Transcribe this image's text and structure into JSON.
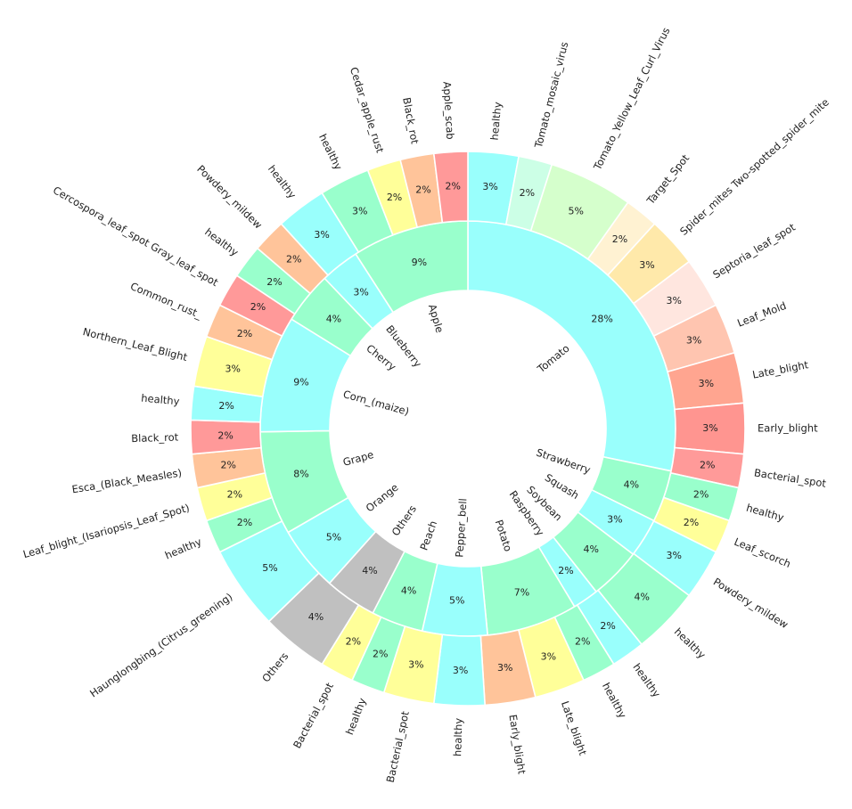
{
  "chart_data": {
    "type": "pie",
    "subtype": "nested-donut",
    "title": "",
    "start_angle_deg": 90,
    "direction": "clockwise",
    "colors": {
      "healthy": "#99fffc",
      "rank1": "#99ffcc",
      "rank2": "#ffff99",
      "rank3": "#ffc49a",
      "rank4": "#ff9999",
      "others": "#c0c0c0"
    },
    "inner_ring": [
      {
        "label": "Tomato",
        "value": 28
      },
      {
        "label": "Strawberry",
        "value": 4
      },
      {
        "label": "Squash",
        "value": 3
      },
      {
        "label": "Soybean",
        "value": 4
      },
      {
        "label": "Raspberry",
        "value": 2
      },
      {
        "label": "Potato",
        "value": 7
      },
      {
        "label": "Pepper_bell",
        "value": 5
      },
      {
        "label": "Peach",
        "value": 4
      },
      {
        "label": "Others",
        "value": 4
      },
      {
        "label": "Orange",
        "value": 5
      },
      {
        "label": "Grape",
        "value": 8
      },
      {
        "label": "Corn_(maize)",
        "value": 9
      },
      {
        "label": "Cherry",
        "value": 4
      },
      {
        "label": "Blueberry",
        "value": 3
      },
      {
        "label": "Apple",
        "value": 9
      }
    ],
    "outer_ring": [
      {
        "label": "healthy",
        "value": 3,
        "color": "#99fffc"
      },
      {
        "label": "Tomato_mosaic_virus",
        "value": 2,
        "color": "#ccffe6"
      },
      {
        "label": "Tomato_Yellow_Leaf_Curl_Virus",
        "value": 5,
        "color": "#d5ffcc"
      },
      {
        "label": "Target_Spot",
        "value": 2,
        "color": "#fff2d2"
      },
      {
        "label": "Spider_mites Two-spotted_spider_mite",
        "value": 3,
        "color": "#ffe9aa"
      },
      {
        "label": "Septoria_leaf_spot",
        "value": 3,
        "color": "#ffe6df"
      },
      {
        "label": "Leaf_Mold",
        "value": 3,
        "color": "#ffc5b0"
      },
      {
        "label": "Late_blight",
        "value": 3,
        "color": "#ffa590"
      },
      {
        "label": "Early_blight",
        "value": 3,
        "color": "#ff9590"
      },
      {
        "label": "Bacterial_spot",
        "value": 2,
        "color": "#ff9a99"
      },
      {
        "label": "healthy",
        "value": 2,
        "color": "#99ffcc"
      },
      {
        "label": "Leaf_scorch",
        "value": 2,
        "color": "#ffff99"
      },
      {
        "label": "Powdery_mildew",
        "value": 3,
        "color": "#99fffc"
      },
      {
        "label": "healthy",
        "value": 4,
        "color": "#99ffcc"
      },
      {
        "label": "healthy",
        "value": 2,
        "color": "#99fffc"
      },
      {
        "label": "healthy",
        "value": 2,
        "color": "#99ffcc"
      },
      {
        "label": "Late_blight",
        "value": 3,
        "color": "#ffff99"
      },
      {
        "label": "Early_blight",
        "value": 3,
        "color": "#ffc49a"
      },
      {
        "label": "healthy",
        "value": 3,
        "color": "#99fffc"
      },
      {
        "label": "Bacterial_spot",
        "value": 3,
        "color": "#ffff99"
      },
      {
        "label": "healthy",
        "value": 2,
        "color": "#99ffcc"
      },
      {
        "label": "Bacterial_spot",
        "value": 2,
        "color": "#ffff99"
      },
      {
        "label": "Others",
        "value": 4,
        "color": "#c0c0c0"
      },
      {
        "label": "Haunglongbing_(Citrus_greening)",
        "value": 5,
        "color": "#99fffc"
      },
      {
        "label": "healthy",
        "value": 2,
        "color": "#99ffcc"
      },
      {
        "label": "Leaf_blight_(Isariopsis_Leaf_Spot)",
        "value": 2,
        "color": "#ffff99"
      },
      {
        "label": "Esca_(Black_Measles)",
        "value": 2,
        "color": "#ffc49a"
      },
      {
        "label": "Black_rot",
        "value": 2,
        "color": "#ff9999"
      },
      {
        "label": "healthy",
        "value": 2,
        "color": "#99fffc"
      },
      {
        "label": "Northern_Leaf_Blight",
        "value": 3,
        "color": "#ffff99"
      },
      {
        "label": "Common_rust_",
        "value": 2,
        "color": "#ffc49a"
      },
      {
        "label": "Cercospora_leaf_spot Gray_leaf_spot",
        "value": 2,
        "color": "#ff9999"
      },
      {
        "label": "healthy",
        "value": 2,
        "color": "#99ffcc"
      },
      {
        "label": "Powdery_mildew",
        "value": 2,
        "color": "#ffc49a"
      },
      {
        "label": "healthy",
        "value": 3,
        "color": "#99fffc"
      },
      {
        "label": "healthy",
        "value": 3,
        "color": "#99ffcc"
      },
      {
        "label": "Cedar_apple_rust",
        "value": 2,
        "color": "#ffff99"
      },
      {
        "label": "Black_rot",
        "value": 2,
        "color": "#ffc49a"
      },
      {
        "label": "Apple_scab",
        "value": 2,
        "color": "#ff9999"
      }
    ],
    "inner_ring_colors": [
      "#99fffc",
      "#99ffcc",
      "#99fffc",
      "#99ffcc",
      "#99fffc",
      "#99ffcc",
      "#99fffc",
      "#99ffcc",
      "#c0c0c0",
      "#99fffc",
      "#99ffcc",
      "#99fffc",
      "#99ffcc",
      "#99fffc",
      "#99ffcc"
    ]
  }
}
